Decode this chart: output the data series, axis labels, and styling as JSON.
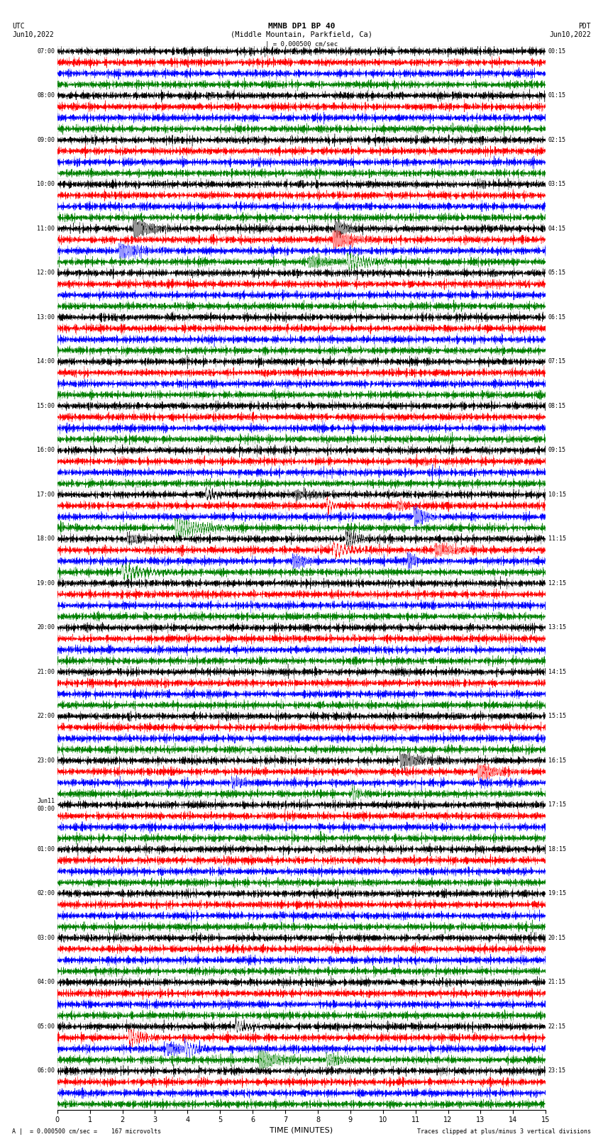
{
  "title_line1": "MMNB DP1 BP 40",
  "title_line2": "(Middle Mountain, Parkfield, Ca)",
  "label_utc": "UTC",
  "label_pdt": "PDT",
  "date_left": "Jun10,2022",
  "date_right": "Jun10,2022",
  "scale_bar_label": "| = 0.000500 cm/sec",
  "footer_left": "A |  = 0.000500 cm/sec =    167 microvolts",
  "footer_right": "Traces clipped at plus/minus 3 vertical divisions",
  "xlabel": "TIME (MINUTES)",
  "xlim": [
    0,
    15
  ],
  "xticks": [
    0,
    1,
    2,
    3,
    4,
    5,
    6,
    7,
    8,
    9,
    10,
    11,
    12,
    13,
    14,
    15
  ],
  "colors": [
    "black",
    "red",
    "blue",
    "green"
  ],
  "bg_color": "white",
  "n_groups": 24,
  "traces_per_group": 4,
  "left_labels": [
    "07:00",
    "08:00",
    "09:00",
    "10:00",
    "11:00",
    "12:00",
    "13:00",
    "14:00",
    "15:00",
    "16:00",
    "17:00",
    "18:00",
    "19:00",
    "20:00",
    "21:00",
    "22:00",
    "23:00",
    "Jun11\n00:00",
    "01:00",
    "02:00",
    "03:00",
    "04:00",
    "05:00",
    "06:00"
  ],
  "right_labels": [
    "00:15",
    "01:15",
    "02:15",
    "03:15",
    "04:15",
    "05:15",
    "06:15",
    "07:15",
    "08:15",
    "09:15",
    "10:15",
    "11:15",
    "12:15",
    "13:15",
    "14:15",
    "15:15",
    "16:15",
    "17:15",
    "18:15",
    "19:15",
    "20:15",
    "21:15",
    "22:15",
    "23:15"
  ],
  "n_minutes": 15,
  "samples_per_minute": 200,
  "trace_amplitude": 0.38,
  "clip_divisions": 3,
  "large_event_groups": [
    4,
    10,
    11,
    16,
    22
  ],
  "large_event_color_indices": [
    0,
    1,
    2
  ],
  "title_fontsize": 8,
  "label_fontsize": 7,
  "tick_fontsize": 7,
  "trace_linewidth": 0.3
}
